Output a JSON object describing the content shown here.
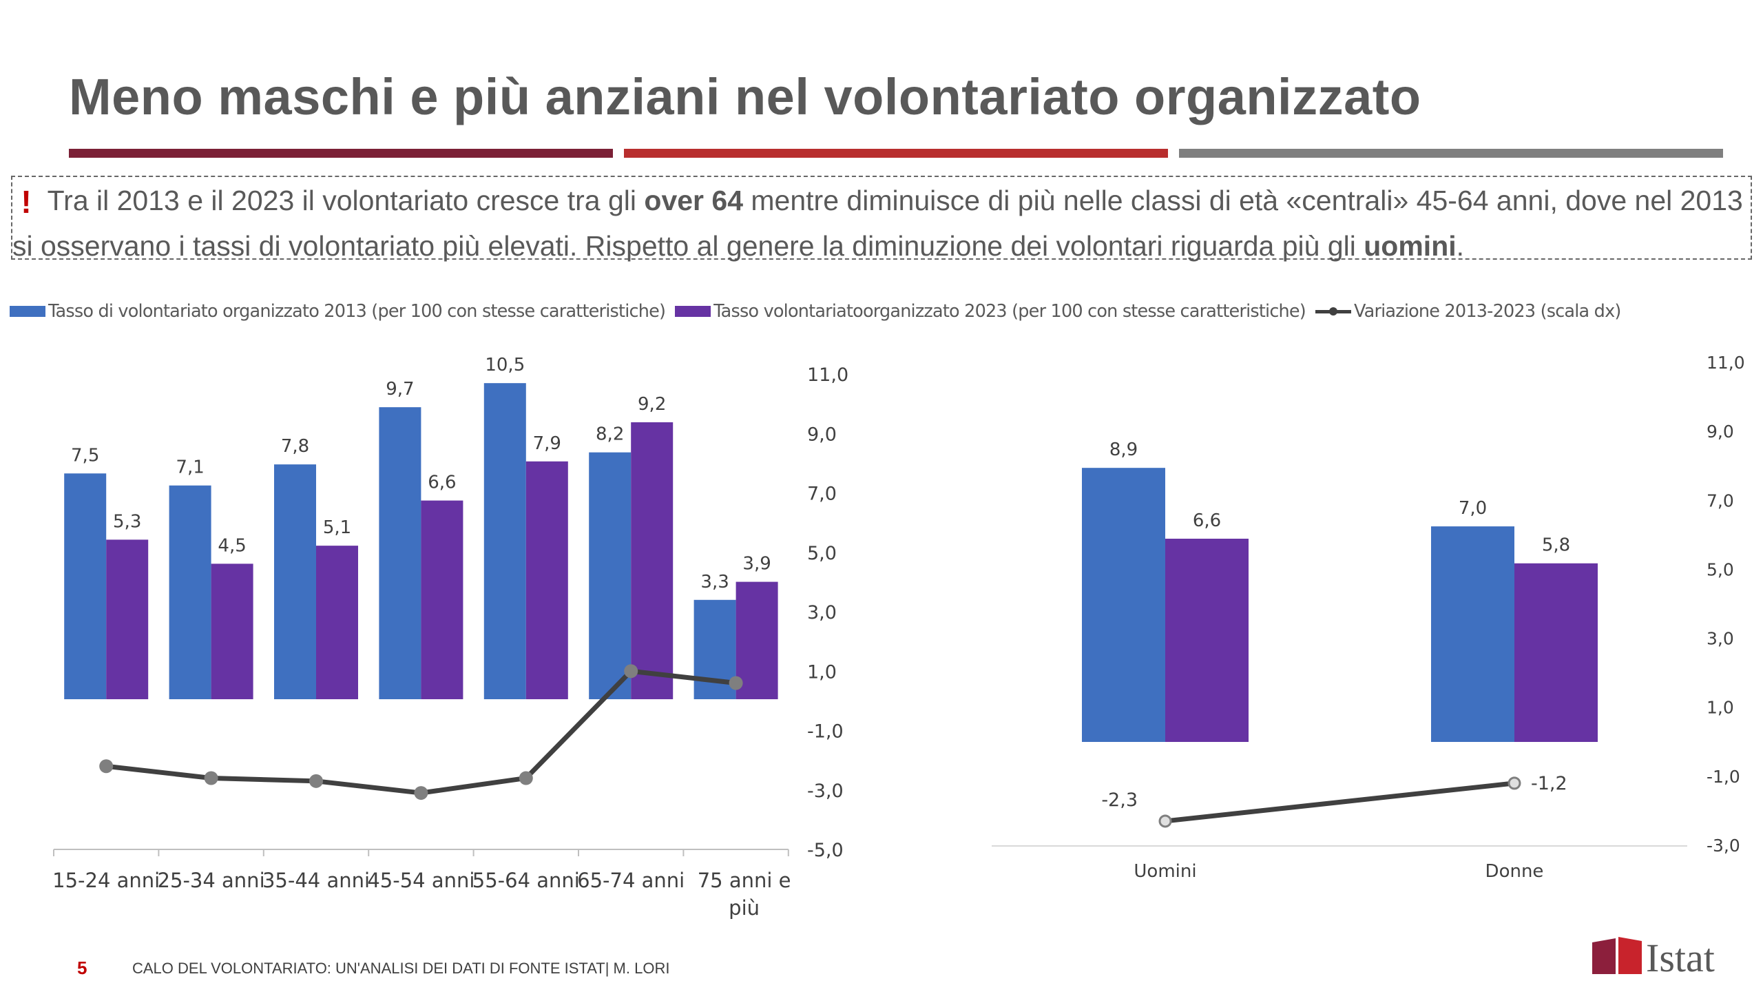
{
  "title": "Meno maschi e più anziani nel volontariato organizzato",
  "callout": {
    "mark": "!",
    "part1": " Tra il 2013 e il 2023 il volontariato cresce tra gli ",
    "bold1": "over 64",
    "part2": " mentre diminuisce di più nelle classi di età «centrali» 45-64 anni, dove nel 2013 si osservano i tassi di volontariato più elevati. Rispetto al genere la diminuzione dei volontari riguarda più gli ",
    "bold2": "uomini",
    "part3": "."
  },
  "legend": {
    "series_2013": "Tasso di volontariato organizzato 2013 (per 100 con stesse caratteristiche)",
    "series_2023": "Tasso volontariatoorganizzato 2023 (per 100 con stesse caratteristiche)",
    "series_var": "Variazione 2013-2023 (scala dx)"
  },
  "colors": {
    "series_2013": "#3f70c0",
    "series_2023": "#6633a3",
    "variation": "#404040",
    "marker": "#7f7f7f",
    "accent_red": "#c00000"
  },
  "chart_data": [
    {
      "type": "bar",
      "name": "by-age",
      "categories": [
        "15-24 anni",
        "25-34 anni",
        "35-44 anni",
        "45-54 anni",
        "55-64 anni",
        "65-74 anni",
        "75 anni e più"
      ],
      "series": [
        {
          "name": "Tasso di volontariato organizzato 2013 (per 100 con stesse caratteristiche)",
          "values": [
            7.5,
            7.1,
            7.8,
            9.7,
            10.5,
            8.2,
            3.3
          ],
          "labels": [
            "7,5",
            "7,1",
            "7,8",
            "9,7",
            "10,5",
            "8,2",
            "3,3"
          ]
        },
        {
          "name": "Tasso volontariatoorganizzato 2023 (per 100 con stesse caratteristiche)",
          "values": [
            5.3,
            4.5,
            5.1,
            6.6,
            7.9,
            9.2,
            3.9
          ],
          "labels": [
            "5,3",
            "4,5",
            "5,1",
            "6,6",
            "7,9",
            "9,2",
            "3,9"
          ]
        },
        {
          "name": "Variazione 2013-2023 (scala dx)",
          "type": "line",
          "axis": "right",
          "values": [
            -2.2,
            -2.6,
            -2.7,
            -3.1,
            -2.6,
            1.0,
            0.6
          ]
        }
      ],
      "y_right_ticks": [
        "11,0",
        "9,0",
        "7,0",
        "5,0",
        "3,0",
        "1,0",
        "-1,0",
        "-3,0",
        "-5,0"
      ],
      "y_right_range": [
        -5,
        11
      ]
    },
    {
      "type": "bar",
      "name": "by-gender",
      "categories": [
        "Uomini",
        "Donne"
      ],
      "series": [
        {
          "name": "Tasso di volontariato organizzato 2013 (per 100 con stesse caratteristiche)",
          "values": [
            8.9,
            7.0
          ],
          "labels": [
            "8,9",
            "7,0"
          ]
        },
        {
          "name": "Tasso volontariatoorganizzato 2023 (per 100 con stesse caratteristiche)",
          "values": [
            6.6,
            5.8
          ],
          "labels": [
            "6,6",
            "5,8"
          ]
        },
        {
          "name": "Variazione 2013-2023 (scala dx)",
          "type": "line",
          "axis": "right",
          "values": [
            -2.3,
            -1.2
          ],
          "labels": [
            "-2,3",
            "-1,2"
          ]
        }
      ],
      "y_right_ticks": [
        "11,0",
        "9,0",
        "7,0",
        "5,0",
        "3,0",
        "1,0",
        "-1,0",
        "-3,0"
      ],
      "y_right_range": [
        -3,
        11
      ]
    }
  ],
  "footer": {
    "slide_number": "5",
    "text": "CALO DEL VOLONTARIATO: UN'ANALISI DEI DATI DI FONTE ISTAT| M. LORI",
    "logo_text": "Istat"
  }
}
